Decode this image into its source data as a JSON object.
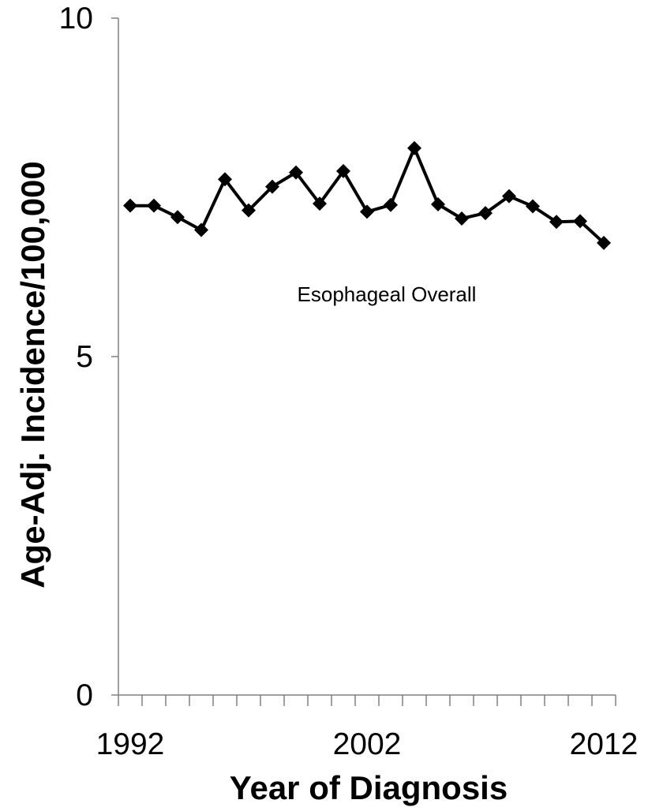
{
  "chart_data": {
    "type": "line",
    "title": "",
    "xlabel": "Year of Diagnosis",
    "ylabel": "Age-Adj. Incidence/100,000",
    "annotation": "Esophageal Overall",
    "ylim": [
      0,
      10
    ],
    "yticks": [
      "0",
      "5",
      "10"
    ],
    "xticks": [
      "1992",
      "2002",
      "2012"
    ],
    "x": [
      1992,
      1993,
      1994,
      1995,
      1996,
      1997,
      1998,
      1999,
      2000,
      2001,
      2002,
      2003,
      2004,
      2005,
      2006,
      2007,
      2008,
      2009,
      2010,
      2011,
      2012
    ],
    "series": [
      {
        "values": [
          7.23,
          7.23,
          7.06,
          6.87,
          7.62,
          7.16,
          7.51,
          7.72,
          7.26,
          7.74,
          7.14,
          7.24,
          8.08,
          7.25,
          7.04,
          7.12,
          7.37,
          7.22,
          6.99,
          7.0,
          6.68
        ]
      }
    ],
    "grid": false,
    "legend": "none",
    "line_color": "#000000",
    "axis_color": "#808080"
  }
}
